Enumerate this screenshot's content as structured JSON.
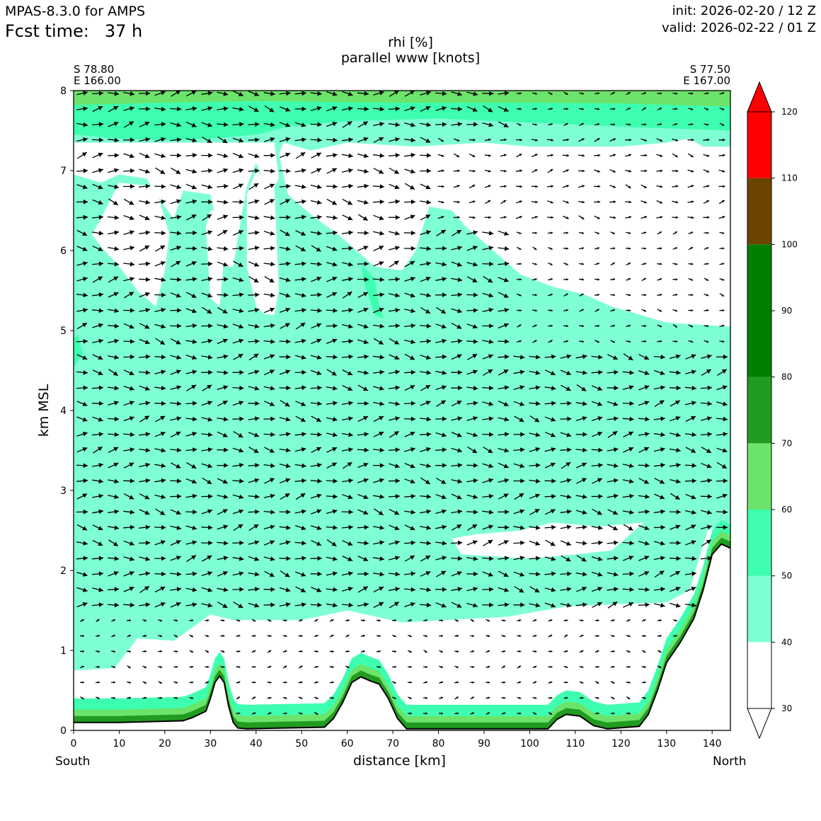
{
  "header": {
    "model": "MPAS-8.3.0 for AMPS",
    "fcst_label": "Fcst time:",
    "fcst_value": "37 h",
    "init": "init: 2026-02-20 / 12 Z",
    "valid": "valid: 2026-02-22 / 01 Z"
  },
  "corners": {
    "left_lat": "S 78.80",
    "left_lon": "E 166.00",
    "right_lat": "S 77.50",
    "right_lon": "E 167.00"
  },
  "chart_data": {
    "type": "heatmap",
    "title": "rhi [%]",
    "subtitle": "parallel www [knots]",
    "xlabel": "distance [km]",
    "ylabel": "km MSL",
    "xlim": [
      0,
      144
    ],
    "ylim": [
      0,
      8
    ],
    "x_ticks": [
      "0",
      "10",
      "20",
      "30",
      "40",
      "50",
      "60",
      "70",
      "80",
      "90",
      "100",
      "110",
      "120",
      "130",
      "140"
    ],
    "y_ticks": [
      "0",
      "1",
      "2",
      "3",
      "4",
      "5",
      "6",
      "7",
      "8"
    ],
    "end_labels": {
      "left": "South",
      "right": "North"
    },
    "colorbar": {
      "ticks": [
        "30",
        "40",
        "50",
        "60",
        "70",
        "80",
        "90",
        "100",
        "110",
        "120"
      ],
      "bins": [
        {
          "from": 30,
          "to": 40,
          "color": "#ffffff"
        },
        {
          "from": 40,
          "to": 50,
          "color": "#7fffd4"
        },
        {
          "from": 50,
          "to": 60,
          "color": "#3dffaf"
        },
        {
          "from": 60,
          "to": 70,
          "color": "#6ce36a"
        },
        {
          "from": 70,
          "to": 80,
          "color": "#219c21"
        },
        {
          "from": 80,
          "to": 90,
          "color": "#008000"
        },
        {
          "from": 90,
          "to": 100,
          "color": "#008000"
        },
        {
          "from": 100,
          "to": 110,
          "color": "#6b4400"
        },
        {
          "from": 110,
          "to": 120,
          "color": "#ff0000"
        }
      ],
      "extend": "both"
    },
    "terrain": [
      [
        0,
        0.1
      ],
      [
        10,
        0.1
      ],
      [
        24,
        0.12
      ],
      [
        26,
        0.16
      ],
      [
        29,
        0.24
      ],
      [
        30,
        0.4
      ],
      [
        31,
        0.6
      ],
      [
        32,
        0.68
      ],
      [
        33,
        0.6
      ],
      [
        34,
        0.3
      ],
      [
        35,
        0.1
      ],
      [
        36,
        0.03
      ],
      [
        38,
        0.02
      ],
      [
        55,
        0.04
      ],
      [
        57,
        0.15
      ],
      [
        59,
        0.35
      ],
      [
        61,
        0.6
      ],
      [
        63,
        0.67
      ],
      [
        65,
        0.62
      ],
      [
        67,
        0.58
      ],
      [
        69,
        0.4
      ],
      [
        71,
        0.15
      ],
      [
        73,
        0.02
      ],
      [
        104,
        0.02
      ],
      [
        106,
        0.14
      ],
      [
        108,
        0.2
      ],
      [
        111,
        0.18
      ],
      [
        114,
        0.06
      ],
      [
        117,
        0.02
      ],
      [
        124,
        0.05
      ],
      [
        126,
        0.2
      ],
      [
        128,
        0.5
      ],
      [
        130,
        0.85
      ],
      [
        133,
        1.1
      ],
      [
        136,
        1.4
      ],
      [
        138,
        1.75
      ],
      [
        140,
        2.2
      ],
      [
        142,
        2.33
      ],
      [
        144,
        2.28
      ]
    ],
    "rhi_regions": [
      {
        "bin": "40-50",
        "polygon": [
          [
            0,
            0.75
          ],
          [
            9,
            0.78
          ],
          [
            14,
            1.15
          ],
          [
            22,
            1.12
          ],
          [
            30,
            1.45
          ],
          [
            35,
            1.38
          ],
          [
            50,
            1.38
          ],
          [
            60,
            1.5
          ],
          [
            72,
            1.35
          ],
          [
            95,
            1.42
          ],
          [
            108,
            1.55
          ],
          [
            120,
            1.58
          ],
          [
            130,
            1.6
          ],
          [
            135,
            1.75
          ],
          [
            139,
            2.5
          ],
          [
            144,
            2.6
          ],
          [
            144,
            5.05
          ],
          [
            130,
            5.1
          ],
          [
            118,
            5.3
          ],
          [
            112,
            5.45
          ],
          [
            105,
            5.55
          ],
          [
            98,
            5.7
          ],
          [
            92,
            6.0
          ],
          [
            86,
            6.3
          ],
          [
            83,
            6.5
          ],
          [
            78,
            6.55
          ],
          [
            75,
            6.0
          ],
          [
            72,
            5.75
          ],
          [
            66,
            5.8
          ],
          [
            58,
            6.2
          ],
          [
            52,
            6.45
          ],
          [
            47,
            6.7
          ],
          [
            45,
            7.2
          ],
          [
            46,
            7.35
          ],
          [
            52,
            7.25
          ],
          [
            60,
            7.35
          ],
          [
            75,
            7.3
          ],
          [
            90,
            7.35
          ],
          [
            100,
            7.3
          ],
          [
            120,
            7.3
          ],
          [
            130,
            7.35
          ],
          [
            135,
            7.4
          ],
          [
            138,
            7.3
          ],
          [
            144,
            7.3
          ],
          [
            144,
            8.0
          ],
          [
            0,
            8.0
          ]
        ]
      },
      {
        "bin": "50-60",
        "polygon": [
          [
            0,
            7.45
          ],
          [
            10,
            7.4
          ],
          [
            20,
            7.38
          ],
          [
            30,
            7.4
          ],
          [
            40,
            7.45
          ],
          [
            47,
            7.55
          ],
          [
            60,
            7.62
          ],
          [
            80,
            7.65
          ],
          [
            100,
            7.6
          ],
          [
            120,
            7.55
          ],
          [
            144,
            7.5
          ],
          [
            144,
            7.9
          ],
          [
            0,
            7.9
          ]
        ]
      },
      {
        "bin": "60-70",
        "polygon": [
          [
            0,
            7.82
          ],
          [
            20,
            7.85
          ],
          [
            40,
            7.87
          ],
          [
            70,
            7.85
          ],
          [
            100,
            7.85
          ],
          [
            120,
            7.84
          ],
          [
            144,
            7.8
          ],
          [
            144,
            8.0
          ],
          [
            0,
            8.0
          ]
        ]
      },
      {
        "bin": "50-60",
        "polygon": [
          [
            63,
            5.82
          ],
          [
            66,
            5.65
          ],
          [
            67,
            5.3
          ],
          [
            68,
            5.15
          ],
          [
            66,
            5.2
          ],
          [
            64,
            5.55
          ]
        ]
      },
      {
        "bin": "50-60",
        "polygon": [
          [
            0,
            4.55
          ],
          [
            2,
            4.7
          ],
          [
            1,
            4.95
          ],
          [
            0,
            4.9
          ]
        ]
      },
      {
        "bin": "30-40",
        "polygon": [
          [
            83,
            2.4
          ],
          [
            85,
            2.2
          ],
          [
            100,
            2.15
          ],
          [
            110,
            2.2
          ],
          [
            118,
            2.25
          ],
          [
            125,
            2.6
          ],
          [
            115,
            2.55
          ],
          [
            105,
            2.6
          ],
          [
            98,
            2.5
          ],
          [
            88,
            2.45
          ]
        ]
      },
      {
        "bin": "30-40",
        "polygon": [
          [
            0,
            6.95
          ],
          [
            6,
            6.85
          ],
          [
            10,
            6.95
          ],
          [
            16,
            6.9
          ],
          [
            20,
            6.55
          ],
          [
            22,
            6.4
          ],
          [
            24,
            6.75
          ],
          [
            30,
            6.7
          ],
          [
            32,
            6.2
          ],
          [
            33,
            5.8
          ],
          [
            35,
            5.8
          ],
          [
            37,
            6.5
          ],
          [
            38,
            6.8
          ],
          [
            40,
            7.1
          ],
          [
            43,
            6.7
          ],
          [
            45,
            6.9
          ],
          [
            44,
            7.35
          ],
          [
            0,
            7.35
          ]
        ]
      },
      {
        "bin": "30-40",
        "polygon": [
          [
            4,
            6.2
          ],
          [
            6,
            6.05
          ],
          [
            10,
            5.8
          ],
          [
            14,
            5.5
          ],
          [
            17,
            5.35
          ],
          [
            18,
            5.3
          ],
          [
            20,
            5.75
          ],
          [
            21,
            6.2
          ],
          [
            18,
            6.8
          ],
          [
            10,
            6.85
          ],
          [
            6,
            6.4
          ]
        ]
      },
      {
        "bin": "30-40",
        "polygon": [
          [
            29,
            6.3
          ],
          [
            30,
            5.4
          ],
          [
            32,
            5.3
          ],
          [
            33,
            5.9
          ],
          [
            32,
            6.5
          ],
          [
            30,
            6.5
          ]
        ]
      },
      {
        "bin": "30-40",
        "polygon": [
          [
            38,
            6.7
          ],
          [
            38,
            5.8
          ],
          [
            40,
            5.3
          ],
          [
            42,
            5.2
          ],
          [
            44,
            5.2
          ],
          [
            45,
            5.5
          ],
          [
            44,
            6.8
          ],
          [
            42,
            6.9
          ],
          [
            40,
            7.0
          ]
        ]
      }
    ],
    "wind_field_rows": 41,
    "wind_field_cols": 42
  }
}
